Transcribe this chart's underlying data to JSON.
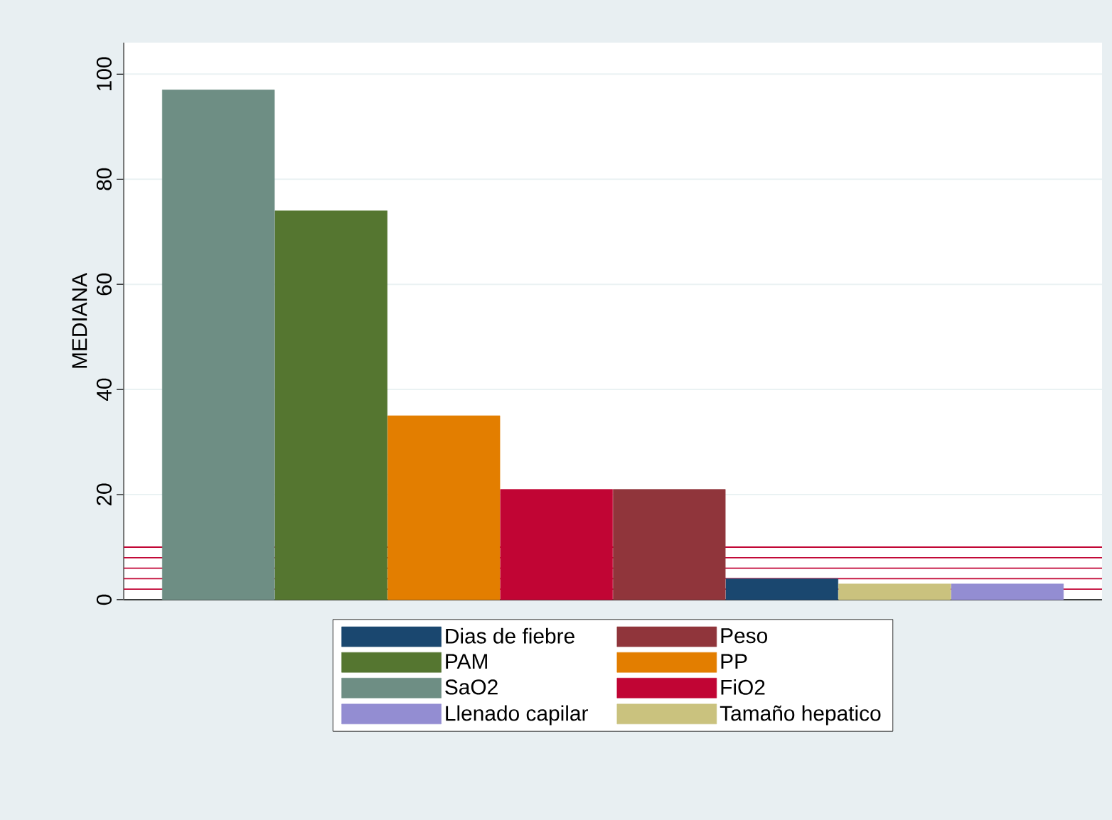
{
  "chart_data": {
    "type": "bar",
    "ylabel": "MEDIANA",
    "categories": [
      null,
      null,
      null,
      null,
      null,
      null,
      null,
      null
    ],
    "series": [
      {
        "name": "Dias de fiebre",
        "color": "#1a476f",
        "values": [
          null,
          null,
          null,
          null,
          null,
          4,
          null,
          null
        ]
      },
      {
        "name": "Peso",
        "color": "#90353b",
        "values": [
          null,
          null,
          null,
          null,
          21,
          null,
          null,
          null
        ]
      },
      {
        "name": "PAM",
        "color": "#557630",
        "values": [
          null,
          74,
          null,
          null,
          null,
          null,
          null,
          null
        ]
      },
      {
        "name": "PP",
        "color": "#e37e00",
        "values": [
          null,
          null,
          35,
          null,
          null,
          null,
          null,
          null
        ]
      },
      {
        "name": "SaO2",
        "color": "#6e8e84",
        "values": [
          97,
          null,
          null,
          null,
          null,
          null,
          null,
          null
        ]
      },
      {
        "name": "FiO2",
        "color": "#c10534",
        "values": [
          null,
          null,
          null,
          21,
          null,
          null,
          null,
          null
        ]
      },
      {
        "name": "Llenado capilar",
        "color": "#938dd2",
        "values": [
          null,
          null,
          null,
          null,
          null,
          null,
          null,
          3
        ]
      },
      {
        "name": "Tamaño hepatico",
        "color": "#cac27e",
        "values": [
          null,
          null,
          null,
          null,
          null,
          null,
          3,
          null
        ]
      }
    ],
    "ylim": [
      0,
      106
    ],
    "yticks": [
      0,
      20,
      40,
      60,
      80,
      100
    ],
    "grid": "y",
    "legend": "bottom",
    "ref_lines": [
      {
        "axis": "y",
        "value": 2,
        "color": "#c10534"
      },
      {
        "axis": "y",
        "value": 4,
        "color": "#c10534"
      },
      {
        "axis": "y",
        "value": 6,
        "color": "#c10534"
      },
      {
        "axis": "y",
        "value": 8,
        "color": "#c10534"
      },
      {
        "axis": "y",
        "value": 10,
        "color": "#c10534"
      }
    ]
  }
}
